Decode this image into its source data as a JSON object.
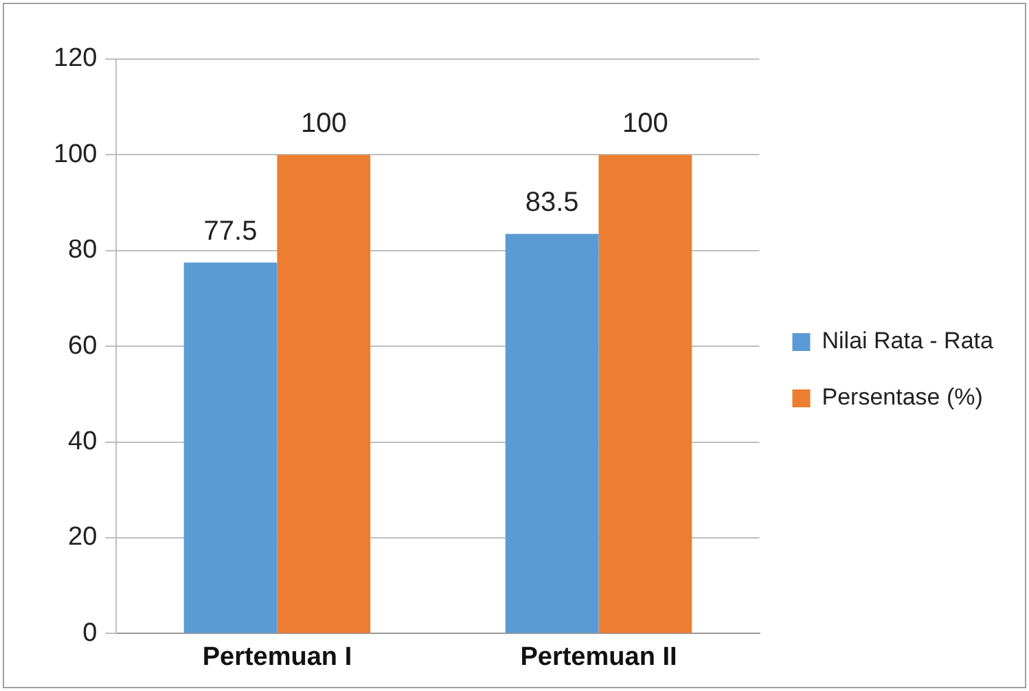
{
  "chart_data": {
    "type": "bar",
    "categories": [
      "Pertemuan I",
      "Pertemuan II"
    ],
    "series": [
      {
        "name": "Nilai Rata - Rata",
        "color": "#5b9bd5",
        "values": [
          77.5,
          83.5
        ]
      },
      {
        "name": "Persentase (%)",
        "color": "#ed7d31",
        "values": [
          100,
          100
        ]
      }
    ],
    "ylim": [
      0,
      120
    ],
    "yticks": [
      0,
      20,
      40,
      60,
      80,
      100,
      120
    ],
    "grid": "y",
    "legend": "right",
    "data_labels": true
  }
}
